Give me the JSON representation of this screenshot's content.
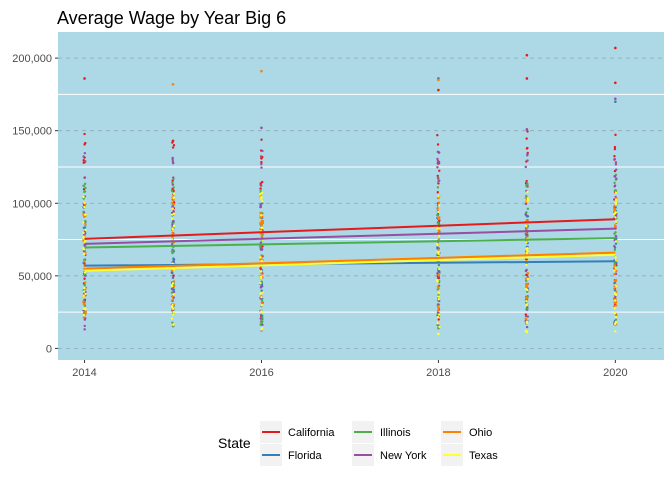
{
  "chart_data": {
    "type": "scatter",
    "title": "Average Wage by Year Big 6",
    "xlabel": "",
    "ylabel": "",
    "xlim": [
      2013.7,
      2020.55
    ],
    "ylim": [
      -8000,
      218000
    ],
    "x_ticks": [
      2014,
      2016,
      2018,
      2020
    ],
    "x_tick_labels": [
      "2014",
      "2016",
      "2018",
      "2020"
    ],
    "y_ticks": [
      0,
      50000,
      100000,
      150000,
      200000
    ],
    "y_tick_labels": [
      "0",
      "50,000",
      "100,000",
      "150,000",
      "200,000"
    ],
    "y_gridlines_major_dashed": [
      0,
      50000,
      100000,
      150000,
      200000
    ],
    "y_gridlines_minor_solid": [
      25000,
      75000,
      125000,
      175000
    ],
    "point_years": [
      2014,
      2015,
      2016,
      2018,
      2019,
      2020
    ],
    "legend": {
      "title": "State",
      "position": "bottom"
    },
    "background_color": "#add8e6",
    "series": [
      {
        "name": "California",
        "color": "#e41a1c",
        "trend": [
          [
            2014,
            75500
          ],
          [
            2020,
            89000
          ]
        ],
        "range": [
          15000,
          150000
        ],
        "outliers": [
          [
            2014,
            186000
          ],
          [
            2015,
            143000
          ],
          [
            2016,
            131000
          ],
          [
            2018,
            178000
          ],
          [
            2019,
            186000
          ],
          [
            2019,
            202000
          ],
          [
            2020,
            207000
          ],
          [
            2020,
            183000
          ]
        ]
      },
      {
        "name": "Florida",
        "color": "#377eb8",
        "trend": [
          [
            2014,
            57000
          ],
          [
            2020,
            60000
          ]
        ],
        "range": [
          18000,
          100000
        ],
        "outliers": [
          [
            2018,
            186000
          ],
          [
            2020,
            170000
          ]
        ]
      },
      {
        "name": "Illinois",
        "color": "#4daf4a",
        "trend": [
          [
            2014,
            69500
          ],
          [
            2020,
            76000
          ]
        ],
        "range": [
          15000,
          120000
        ],
        "outliers": [
          [
            2018,
            14000
          ],
          [
            2020,
            18000
          ]
        ]
      },
      {
        "name": "New York",
        "color": "#984ea3",
        "trend": [
          [
            2014,
            72000
          ],
          [
            2020,
            82500
          ]
        ],
        "range": [
          12000,
          140000
        ],
        "outliers": [
          [
            2016,
            152000
          ],
          [
            2019,
            151000
          ],
          [
            2020,
            172000
          ]
        ]
      },
      {
        "name": "Ohio",
        "color": "#ff7f00",
        "trend": [
          [
            2014,
            55000
          ],
          [
            2020,
            66000
          ]
        ],
        "range": [
          20000,
          105000
        ],
        "outliers": [
          [
            2015,
            182000
          ],
          [
            2016,
            191000
          ],
          [
            2018,
            185000
          ]
        ]
      },
      {
        "name": "Texas",
        "color": "#ffff33",
        "trend": [
          [
            2014,
            53500
          ],
          [
            2020,
            64500
          ]
        ],
        "range": [
          10000,
          110000
        ],
        "outliers": [
          [
            2018,
            10000
          ],
          [
            2020,
            17000
          ]
        ]
      }
    ]
  }
}
